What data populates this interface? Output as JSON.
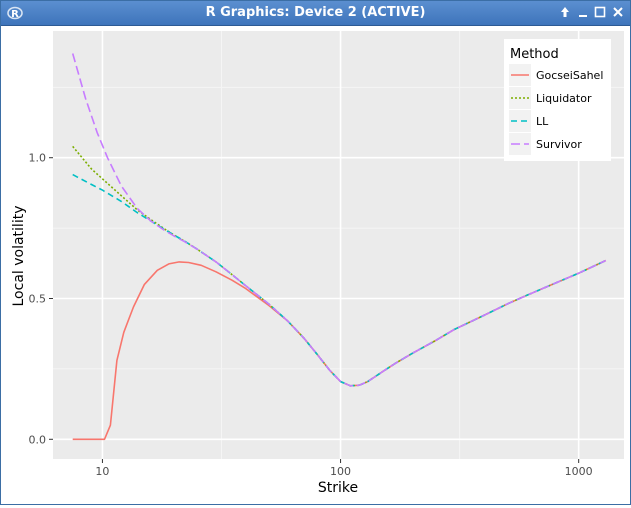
{
  "window": {
    "title": "R Graphics: Device 2 (ACTIVE)",
    "icons": {
      "app": "r-app-icon",
      "up": "arrow-up-icon",
      "minimize": "minimize-icon",
      "maximize": "maximize-icon",
      "close": "close-icon"
    },
    "accent": "#3e74bb"
  },
  "chart_data": {
    "type": "line",
    "title": "",
    "xlabel": "Strike",
    "ylabel": "Local volatility",
    "x_scale": "log10",
    "xlim": [
      6.2,
      1550
    ],
    "ylim": [
      -0.07,
      1.45
    ],
    "x_ticks": [
      10,
      100,
      1000
    ],
    "x_tick_labels": [
      "10",
      "100",
      "1000"
    ],
    "y_ticks": [
      0,
      0.5,
      1
    ],
    "y_tick_labels": [
      "0.0",
      "0.5",
      "1.0"
    ],
    "panel_background": "#ebebeb",
    "grid": true,
    "legend": {
      "title": "Method",
      "position": "top-right"
    },
    "series": [
      {
        "name": "GocseiSahel",
        "color": "#f8766d",
        "dash": "solid",
        "x": [
          7.5,
          9,
          10.2,
          10.8,
          11.5,
          12.3,
          13.5,
          15,
          17,
          19,
          21,
          23,
          26,
          30,
          35,
          40,
          50,
          60,
          70,
          80,
          90,
          100,
          110,
          120,
          130,
          150,
          170,
          200,
          250,
          300,
          400,
          500,
          600,
          800,
          1000,
          1300
        ],
        "y": [
          0.0,
          0.0,
          0.0,
          0.05,
          0.28,
          0.38,
          0.47,
          0.55,
          0.6,
          0.623,
          0.63,
          0.628,
          0.618,
          0.595,
          0.565,
          0.535,
          0.475,
          0.42,
          0.36,
          0.3,
          0.245,
          0.205,
          0.19,
          0.192,
          0.205,
          0.24,
          0.27,
          0.305,
          0.35,
          0.39,
          0.44,
          0.48,
          0.51,
          0.555,
          0.59,
          0.635
        ]
      },
      {
        "name": "Liquidator",
        "color": "#7cae00",
        "dash": "dotted",
        "x": [
          7.5,
          9,
          10,
          12,
          14,
          16,
          18,
          20,
          22,
          25,
          30,
          35,
          40,
          50,
          60,
          70,
          80,
          90,
          100,
          110,
          120,
          130,
          150,
          170,
          200,
          250,
          300,
          400,
          500,
          600,
          800,
          1000,
          1300
        ],
        "y": [
          1.04,
          0.96,
          0.925,
          0.865,
          0.815,
          0.78,
          0.75,
          0.725,
          0.705,
          0.675,
          0.63,
          0.585,
          0.545,
          0.48,
          0.42,
          0.36,
          0.3,
          0.245,
          0.205,
          0.19,
          0.192,
          0.205,
          0.24,
          0.27,
          0.305,
          0.35,
          0.39,
          0.44,
          0.48,
          0.51,
          0.555,
          0.59,
          0.635
        ]
      },
      {
        "name": "LL",
        "color": "#00bfc4",
        "dash": "dashed",
        "x": [
          7.5,
          9,
          10,
          12,
          14,
          16,
          18,
          20,
          22,
          25,
          30,
          35,
          40,
          50,
          60,
          70,
          80,
          90,
          100,
          110,
          120,
          130,
          150,
          170,
          200,
          250,
          300,
          400,
          500,
          600,
          800,
          1000,
          1300
        ],
        "y": [
          0.94,
          0.905,
          0.885,
          0.845,
          0.805,
          0.775,
          0.748,
          0.725,
          0.705,
          0.675,
          0.63,
          0.585,
          0.545,
          0.48,
          0.42,
          0.36,
          0.3,
          0.245,
          0.205,
          0.19,
          0.192,
          0.205,
          0.24,
          0.27,
          0.305,
          0.35,
          0.39,
          0.44,
          0.48,
          0.51,
          0.555,
          0.59,
          0.635
        ]
      },
      {
        "name": "Survivor",
        "color": "#c77cff",
        "dash": "longdash",
        "x": [
          7.5,
          8.5,
          9.5,
          10.5,
          12,
          14,
          16,
          18,
          20,
          22,
          25,
          30,
          35,
          40,
          50,
          60,
          70,
          80,
          90,
          100,
          110,
          120,
          130,
          150,
          170,
          200,
          250,
          300,
          400,
          500,
          600,
          800,
          1000,
          1300
        ],
        "y": [
          1.37,
          1.21,
          1.09,
          1.0,
          0.9,
          0.82,
          0.775,
          0.745,
          0.722,
          0.703,
          0.675,
          0.63,
          0.585,
          0.545,
          0.48,
          0.42,
          0.36,
          0.3,
          0.245,
          0.205,
          0.19,
          0.192,
          0.205,
          0.24,
          0.27,
          0.305,
          0.35,
          0.39,
          0.44,
          0.48,
          0.51,
          0.555,
          0.59,
          0.635
        ]
      }
    ]
  }
}
